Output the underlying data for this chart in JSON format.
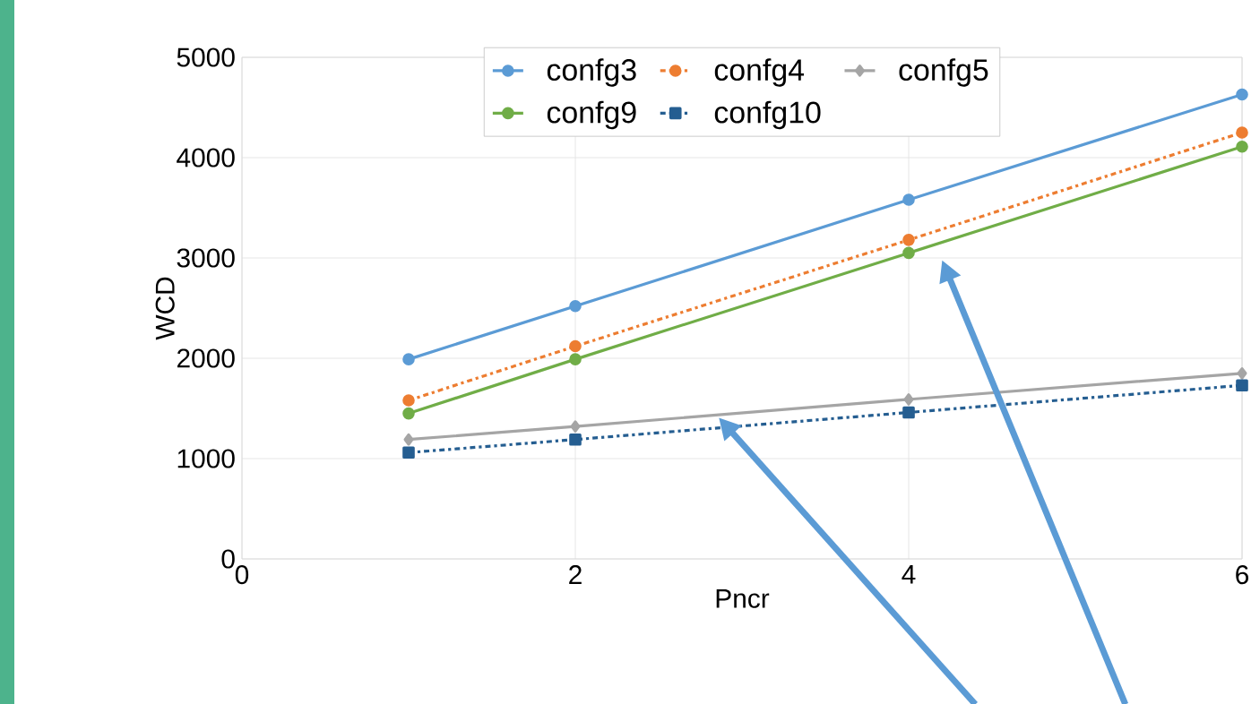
{
  "chart_data": {
    "type": "line",
    "xlabel": "Pncr",
    "ylabel": "WCD",
    "x": [
      1,
      2,
      4,
      6
    ],
    "series": [
      {
        "name": "confg3",
        "color": "#5b9bd5",
        "values": [
          1990,
          2520,
          3580,
          4630
        ],
        "marker": "circle",
        "line_style": "solid"
      },
      {
        "name": "confg4",
        "color": "#ed7d31",
        "values": [
          1580,
          2120,
          3180,
          4250
        ],
        "marker": "circle",
        "line_style": "dashed"
      },
      {
        "name": "confg5",
        "color": "#a5a5a5",
        "values": [
          1190,
          1320,
          1590,
          1850
        ],
        "marker": "diamond",
        "line_style": "solid"
      },
      {
        "name": "confg9",
        "color": "#70ad47",
        "values": [
          1450,
          1990,
          3050,
          4110
        ],
        "marker": "circle",
        "line_style": "solid"
      },
      {
        "name": "confg10",
        "color": "#255e91",
        "values": [
          1060,
          1190,
          1460,
          1730
        ],
        "marker": "square",
        "line_style": "dashed"
      }
    ],
    "xlim": [
      0,
      6
    ],
    "xticks": [
      0,
      2,
      4,
      6
    ],
    "ylim": [
      0,
      5000
    ],
    "yticks": [
      0,
      1000,
      2000,
      3000,
      4000,
      5000
    ],
    "grid": true,
    "legend": "top"
  }
}
